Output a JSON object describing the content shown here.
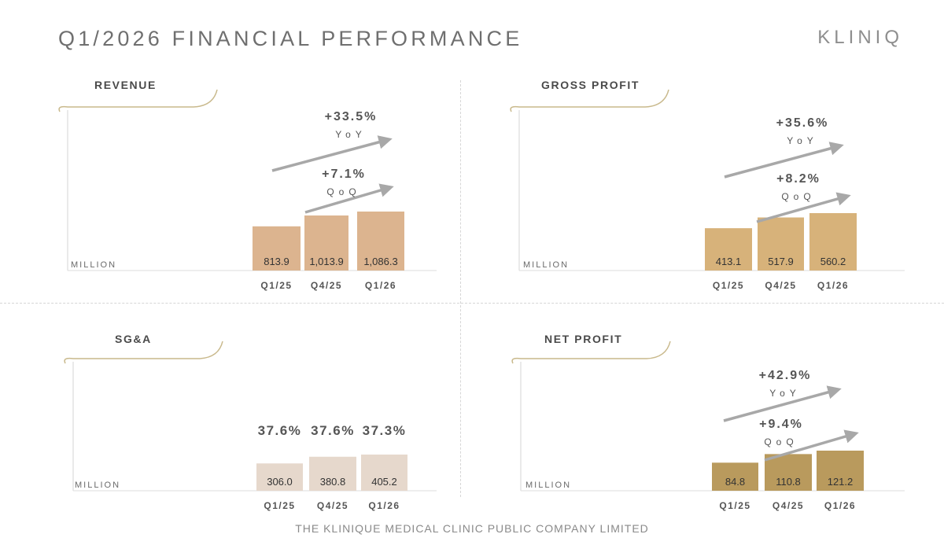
{
  "header": {
    "title": "Q1/2026 FINANCIAL PERFORMANCE",
    "logo": "KLINIQ"
  },
  "footer": {
    "text": "THE KLINIQUE MEDICAL CLINIC PUBLIC COMPANY LIMITED"
  },
  "colors": {
    "revenue": "#dcb48f",
    "gross_profit": "#d7b27a",
    "sga": "#e6d8cc",
    "net_profit": "#b99a5d",
    "arrow": "#a8a8a8"
  },
  "chart_data": [
    {
      "type": "bar",
      "title": "REVENUE",
      "unit": "MILLION",
      "categories": [
        "Q1/25",
        "Q4/25",
        "Q1/26"
      ],
      "values": [
        813.9,
        1013.9,
        1086.3
      ],
      "value_labels": [
        "813.9",
        "1,013.9",
        "1,086.3"
      ],
      "changes": {
        "yoy": "+33.5%",
        "yoy_label": "YoY",
        "qoq": "+7.1%",
        "qoq_label": "QoQ"
      }
    },
    {
      "type": "bar",
      "title": "GROSS PROFIT",
      "unit": "MILLION",
      "categories": [
        "Q1/25",
        "Q4/25",
        "Q1/26"
      ],
      "values": [
        413.1,
        517.9,
        560.2
      ],
      "value_labels": [
        "413.1",
        "517.9",
        "560.2"
      ],
      "changes": {
        "yoy": "+35.6%",
        "yoy_label": "YoY",
        "qoq": "+8.2%",
        "qoq_label": "QoQ"
      }
    },
    {
      "type": "bar",
      "title": "SG&A",
      "unit": "MILLION",
      "categories": [
        "Q1/25",
        "Q4/25",
        "Q1/26"
      ],
      "values": [
        306.0,
        380.8,
        405.2
      ],
      "value_labels": [
        "306.0",
        "380.8",
        "405.2"
      ],
      "ratios": [
        "37.6%",
        "37.6%",
        "37.3%"
      ]
    },
    {
      "type": "bar",
      "title": "NET PROFIT",
      "unit": "MILLION",
      "categories": [
        "Q1/25",
        "Q4/25",
        "Q1/26"
      ],
      "values": [
        84.8,
        110.8,
        121.2
      ],
      "value_labels": [
        "84.8",
        "110.8",
        "121.2"
      ],
      "changes": {
        "yoy": "+42.9%",
        "yoy_label": "YoY",
        "qoq": "+9.4%",
        "qoq_label": "QoQ"
      }
    }
  ]
}
